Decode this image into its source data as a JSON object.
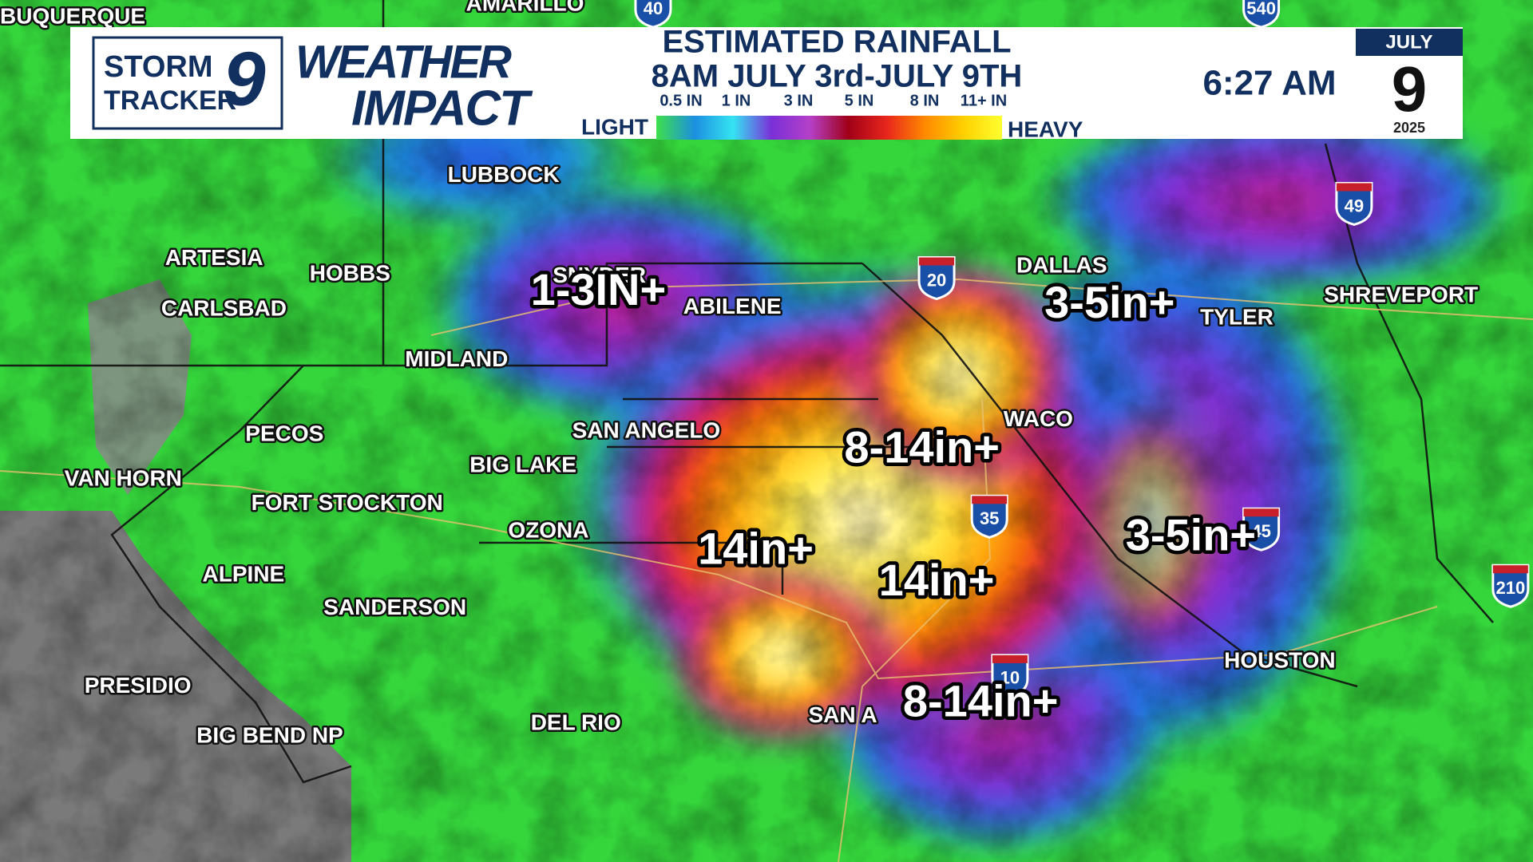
{
  "header": {
    "brand_top": "STORM",
    "brand_bottom": "TRACKER",
    "brand_number": "9",
    "show_line1": "WEATHER",
    "show_line2": "IMPACT",
    "title": "ESTIMATED RAINFALL",
    "subtitle": "8AM JULY 3rd-JULY 9TH",
    "time": "6:27 AM",
    "date_month": "JULY",
    "date_day": "9",
    "date_year": "2025"
  },
  "legend": {
    "low": "LIGHT",
    "high": "HEAVY",
    "ticks": [
      "0.5 IN",
      "1 IN",
      "3 IN",
      "5 IN",
      "8 IN",
      "11+ IN"
    ],
    "colors": [
      "#3ee04a",
      "#1c8fe0",
      "#35e4f2",
      "#7a2fd8",
      "#b540c8",
      "#a00018",
      "#e8261c",
      "#ff8a00",
      "#ffd000",
      "#ffff30"
    ]
  },
  "cities": [
    "BUQUERQUE",
    "AMARILLO",
    "LUBBOCK",
    "ARTESIA",
    "HOBBS",
    "CARLSBAD",
    "SNYDER",
    "ABILENE",
    "MIDLAND",
    "DALLAS",
    "TYLER",
    "SHREVEPORT",
    "WACO",
    "SAN ANGELO",
    "PECOS",
    "BIG LAKE",
    "VAN HORN",
    "FORT STOCKTON",
    "OZONA",
    "ALPINE",
    "SANDERSON",
    "HOUSTON",
    "PRESIDIO",
    "DEL RIO",
    "BIG BEND NP",
    "SAN A"
  ],
  "rainfall_labels": [
    "1-3IN+",
    "3-5in+",
    "8-14in+",
    "14in+",
    "14in+",
    "3-5in+",
    "8-14in+"
  ],
  "highways": [
    "40",
    "540",
    "20",
    "49",
    "35",
    "45",
    "10",
    "210"
  ]
}
